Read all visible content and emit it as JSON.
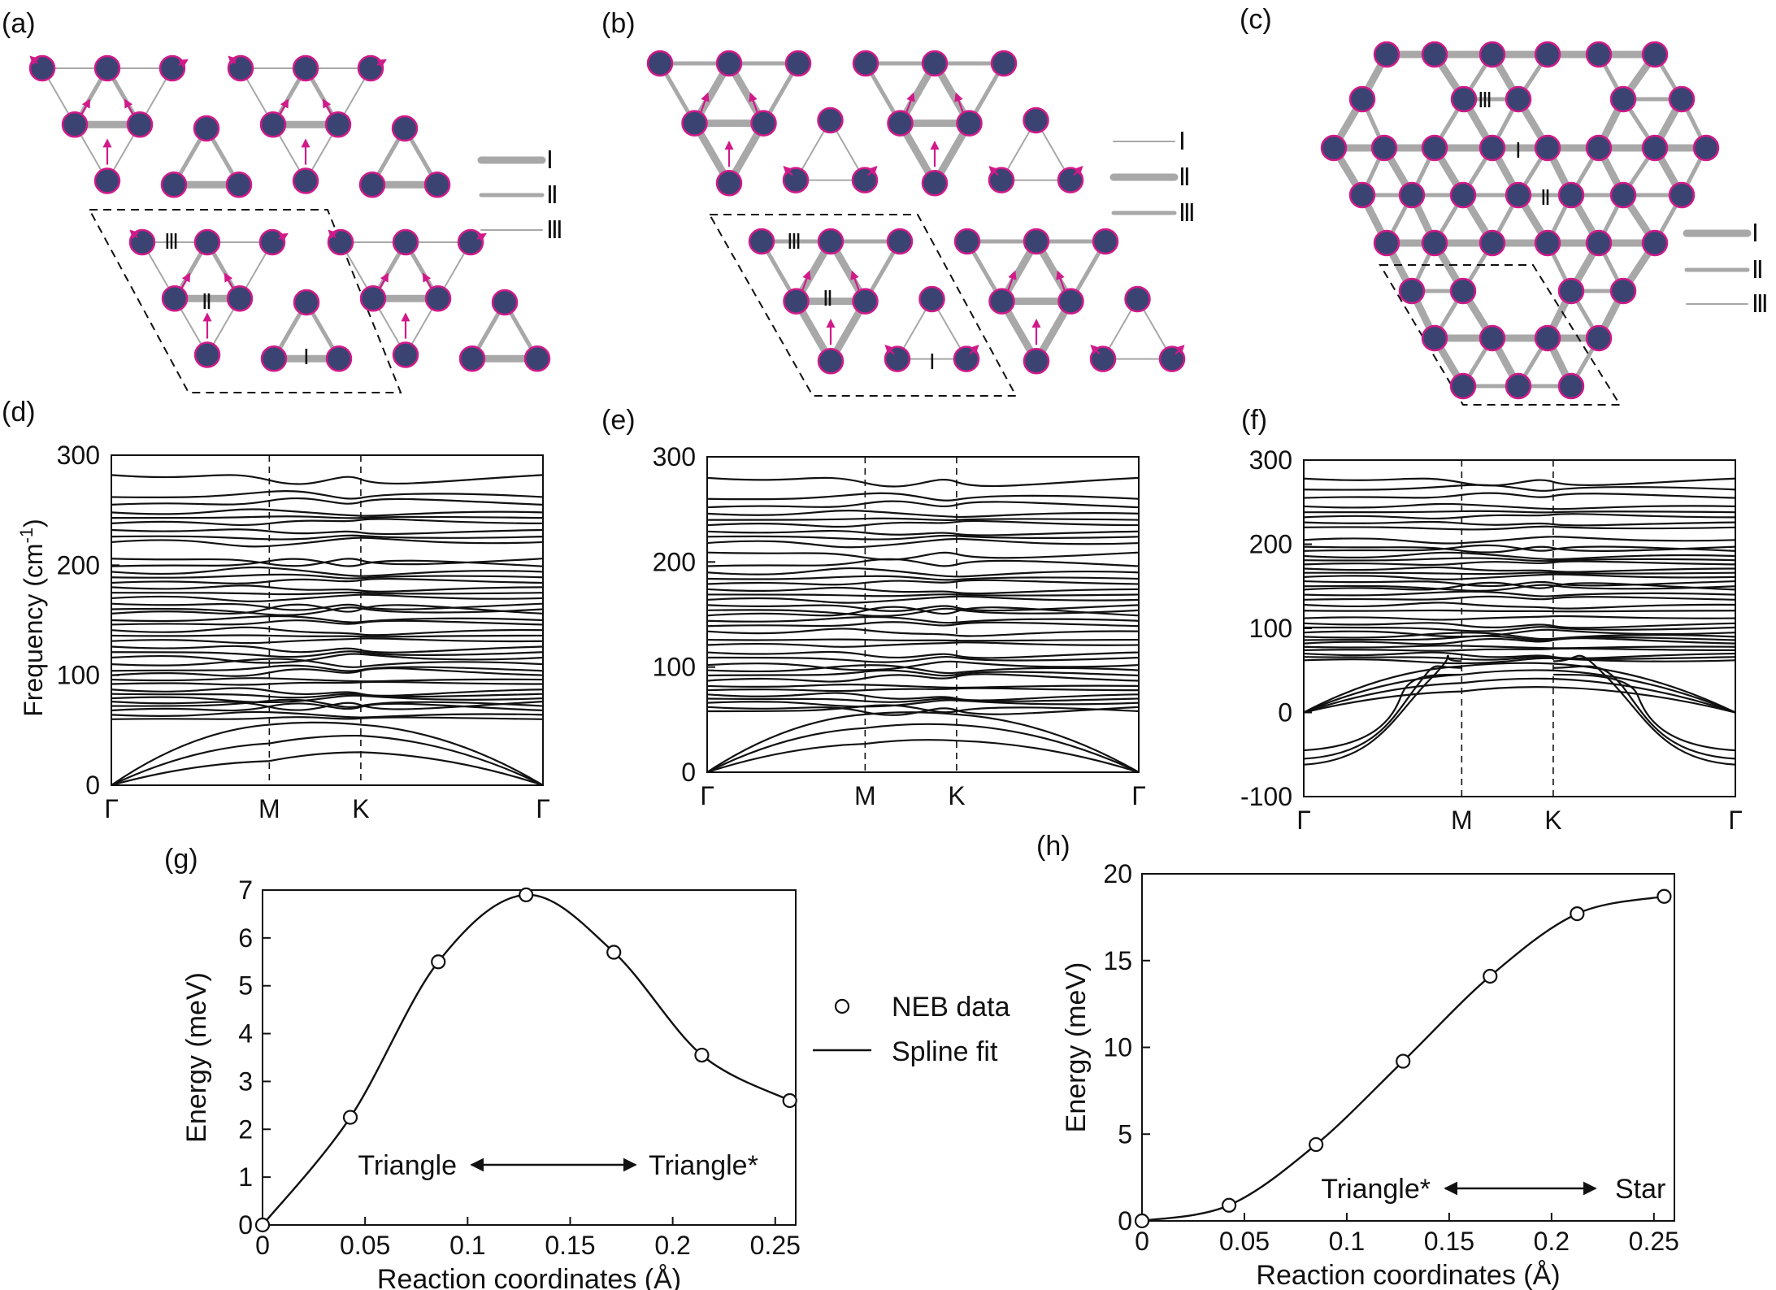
{
  "panel_labels": {
    "a": "(a)",
    "b": "(b)",
    "c": "(c)",
    "d": "(d)",
    "e": "(e)",
    "f": "(f)",
    "g": "(g)",
    "h": "(h)"
  },
  "bond_legend": {
    "I": "Ⅰ",
    "II": "Ⅱ",
    "III": "Ⅲ"
  },
  "lattice_labels": {
    "I": "Ⅰ",
    "II": "Ⅱ",
    "III": "Ⅲ"
  },
  "colors": {
    "atom": "#3a4372",
    "atom_edge": "#d11a8a",
    "bond": "#a8a8a8",
    "arrow": "#d11a8a",
    "line": "#111111"
  },
  "chart_data": [
    {
      "id": "d",
      "type": "line",
      "title": "",
      "ylabel": "Frequency (cm-1)",
      "ylabel_parts": {
        "pre": "Frequency (cm",
        "sup": "-1",
        "post": ")"
      },
      "xlabel": "",
      "k_labels": [
        "Γ",
        "M",
        "K",
        "Γ"
      ],
      "ylim": [
        0,
        300
      ],
      "yticks": [
        0,
        100,
        200,
        300
      ],
      "optical_bands_cm1": [
        282,
        262,
        255,
        248,
        243,
        238,
        232,
        226,
        221,
        206,
        199,
        194,
        189,
        184,
        180,
        175,
        170,
        165,
        160,
        156,
        150,
        146,
        141,
        136,
        131,
        126,
        121,
        116,
        110,
        104,
        100,
        96,
        92,
        87,
        83,
        79,
        76,
        72,
        68,
        64,
        60
      ],
      "acoustic_endpoints_cm1": {
        "M": [
          22,
          38,
          55
        ],
        "K": [
          30,
          45,
          55
        ]
      }
    },
    {
      "id": "e",
      "type": "line",
      "title": "",
      "ylabel": "",
      "xlabel": "",
      "k_labels": [
        "Γ",
        "M",
        "K",
        "Γ"
      ],
      "ylim": [
        0,
        300
      ],
      "yticks": [
        0,
        100,
        200,
        300
      ],
      "optical_bands_cm1": [
        280,
        260,
        252,
        246,
        240,
        235,
        229,
        224,
        218,
        209,
        196,
        190,
        184,
        179,
        174,
        169,
        164,
        159,
        154,
        149,
        144,
        139,
        134,
        126,
        121,
        114,
        109,
        102,
        97,
        92,
        87,
        82,
        78,
        74,
        70,
        66,
        62,
        58
      ],
      "acoustic_endpoints_cm1": {
        "M": [
          27,
          42,
          55
        ],
        "K": [
          30,
          45,
          55
        ]
      }
    },
    {
      "id": "f",
      "type": "line",
      "title": "",
      "ylabel": "",
      "xlabel": "",
      "k_labels": [
        "Γ",
        "M",
        "K",
        "Γ"
      ],
      "ylim": [
        -100,
        300
      ],
      "yticks": [
        -100,
        0,
        100,
        200,
        300
      ],
      "optical_bands_cm1": [
        278,
        265,
        255,
        245,
        238,
        232,
        226,
        220,
        205,
        197,
        192,
        186,
        181,
        176,
        171,
        166,
        161,
        156,
        150,
        146,
        140,
        134,
        128,
        121,
        112,
        106,
        101,
        95,
        90,
        86,
        82,
        78,
        74,
        70,
        66,
        62
      ],
      "imaginary_modes_at_Gamma_cm1": [
        -45,
        -55,
        -62
      ],
      "acoustic_endpoints_cm1": {
        "M": [
          25,
          35,
          45,
          55
        ],
        "K": [
          30,
          40,
          50,
          58
        ]
      }
    },
    {
      "id": "g",
      "type": "scatter",
      "title": "",
      "xlabel": "Reaction coordinates (Å)",
      "ylabel": "Energy (meV)",
      "xlim": [
        0,
        0.26
      ],
      "ylim": [
        0,
        7
      ],
      "xticks": [
        0,
        0.05,
        0.1,
        0.15,
        0.2,
        0.25
      ],
      "xtick_labels": [
        "0",
        "0.05",
        "0.1",
        "0.15",
        "0.2",
        "0.25"
      ],
      "yticks": [
        0,
        1,
        2,
        3,
        4,
        5,
        6,
        7
      ],
      "series": [
        {
          "name": "NEB data",
          "style": "open-circle",
          "x": [
            0,
            0.0428,
            0.0857,
            0.1285,
            0.1713,
            0.2142,
            0.2571
          ],
          "y": [
            0,
            2.25,
            5.5,
            6.9,
            5.7,
            3.55,
            2.6
          ]
        },
        {
          "name": "Spline fit",
          "style": "line"
        }
      ],
      "annotation": {
        "left": "Triangle",
        "right": "Triangle*"
      },
      "legend": [
        {
          "marker": "circle",
          "label": "NEB data"
        },
        {
          "marker": "line",
          "label": "Spline fit"
        }
      ]
    },
    {
      "id": "h",
      "type": "scatter",
      "title": "",
      "xlabel": "Reaction coordinates (Å)",
      "ylabel": "Energy (meV)",
      "xlim": [
        0,
        0.26
      ],
      "ylim": [
        0,
        20
      ],
      "xticks": [
        0,
        0.05,
        0.1,
        0.15,
        0.2,
        0.25
      ],
      "xtick_labels": [
        "0",
        "0.05",
        "0.1",
        "0.15",
        "0.2",
        "0.25"
      ],
      "yticks": [
        0,
        5,
        10,
        15,
        20
      ],
      "series": [
        {
          "name": "NEB data",
          "style": "open-circle",
          "x": [
            0,
            0.0425,
            0.085,
            0.1275,
            0.17,
            0.2125,
            0.255
          ],
          "y": [
            0,
            0.9,
            4.4,
            9.2,
            14.1,
            17.7,
            18.7
          ]
        },
        {
          "name": "Spline fit",
          "style": "line"
        }
      ],
      "annotation": {
        "left": "Triangle*",
        "right": "Star"
      }
    }
  ]
}
